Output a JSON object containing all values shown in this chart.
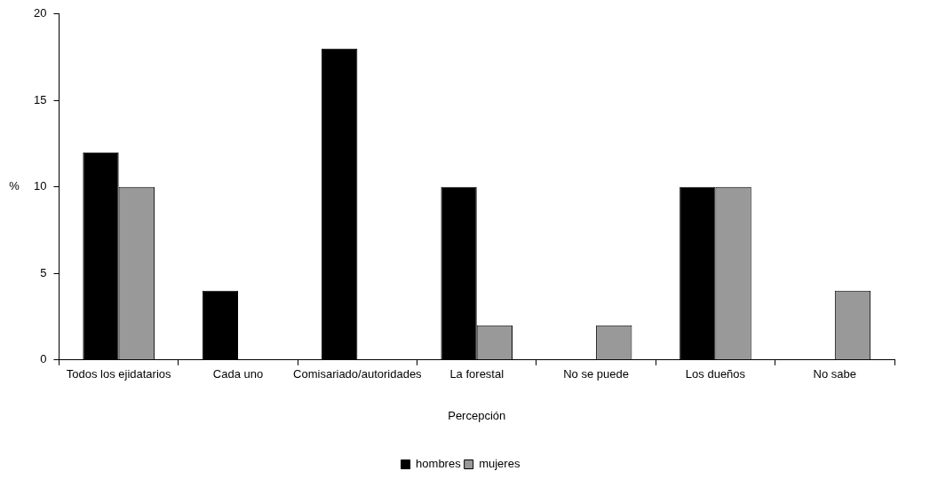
{
  "chart_data": {
    "type": "bar",
    "xlabel": "Percepción",
    "ylabel": "%",
    "categories": [
      "Todos los ejidatarios",
      "Cada uno",
      "Comisariado/autoridades",
      "La forestal",
      "No se puede",
      "Los dueños",
      "No sabe"
    ],
    "series": [
      {
        "name": "hombres",
        "color": "#000000",
        "values": [
          12,
          4,
          18,
          10,
          0,
          10,
          0
        ]
      },
      {
        "name": "mujeres",
        "color": "#999999",
        "values": [
          10,
          0,
          0,
          2,
          2,
          10,
          4
        ]
      }
    ],
    "ylim": [
      0,
      20
    ],
    "yticks": [
      0,
      5,
      10,
      15,
      20
    ],
    "grid": false,
    "legend": "bottom"
  }
}
